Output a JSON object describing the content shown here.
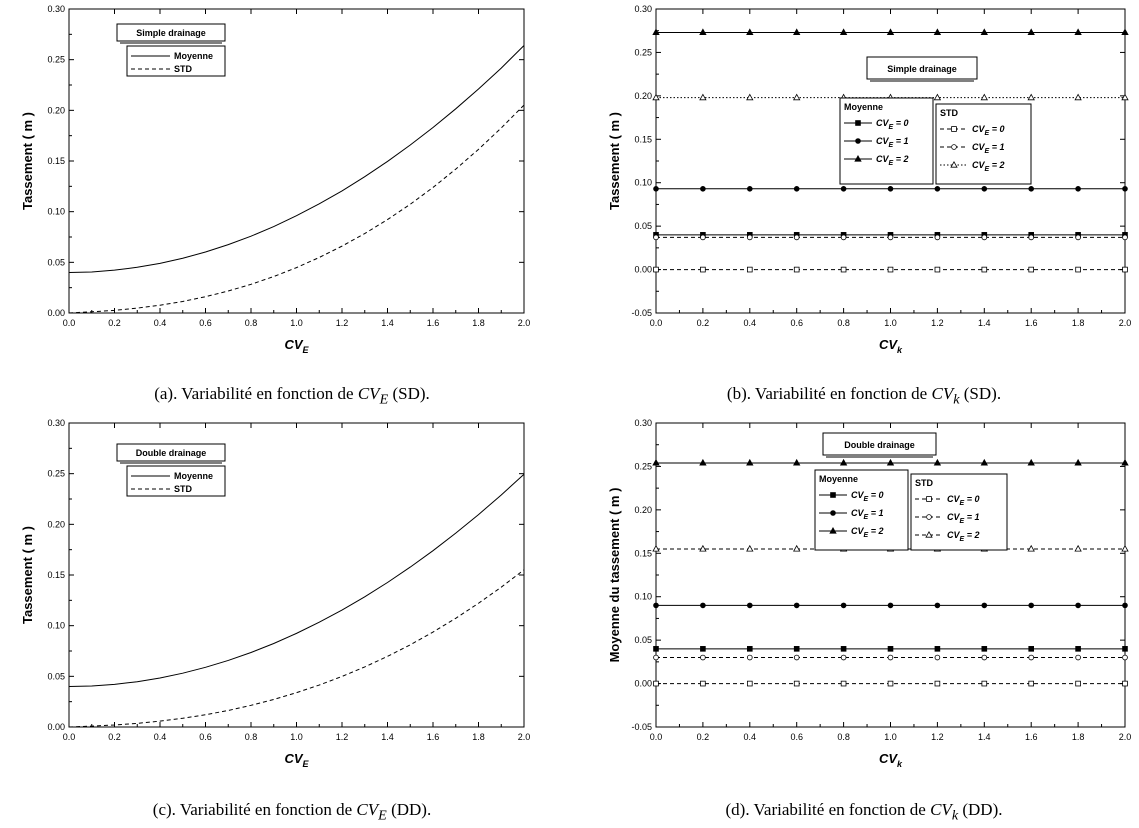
{
  "chart_data": [
    {
      "id": "a",
      "type": "line",
      "xlabel": "CV",
      "xlabel_sub": "E",
      "ylabel": "Tassement ( m )",
      "xlim": [
        0,
        2.0
      ],
      "ylim": [
        0,
        0.3
      ],
      "xticks": [
        "0.0",
        "0.2",
        "0.4",
        "0.6",
        "0.8",
        "1.0",
        "1.2",
        "1.4",
        "1.6",
        "1.8",
        "2.0"
      ],
      "yticks": [
        "0.00",
        "0.05",
        "0.10",
        "0.15",
        "0.20",
        "0.25",
        "0.30"
      ],
      "grid": false,
      "legend_title": "Simple drainage",
      "series": [
        {
          "name": "Moyenne",
          "style": "solid",
          "x": [
            0,
            0.1,
            0.2,
            0.3,
            0.4,
            0.5,
            0.6,
            0.7,
            0.8,
            0.9,
            1.0,
            1.1,
            1.2,
            1.3,
            1.4,
            1.5,
            1.6,
            1.7,
            1.8,
            1.9,
            2.0
          ],
          "y": [
            0.04,
            0.0405,
            0.0423,
            0.0451,
            0.049,
            0.054,
            0.0602,
            0.0675,
            0.0758,
            0.0853,
            0.096,
            0.1077,
            0.1205,
            0.1345,
            0.1496,
            0.1658,
            0.1831,
            0.2015,
            0.221,
            0.2417,
            0.264
          ]
        },
        {
          "name": "STD",
          "style": "dashed",
          "x": [
            0,
            0.1,
            0.2,
            0.3,
            0.4,
            0.5,
            0.6,
            0.7,
            0.8,
            0.9,
            1.0,
            1.1,
            1.2,
            1.3,
            1.4,
            1.5,
            1.6,
            1.7,
            1.8,
            1.9,
            2.0
          ],
          "y": [
            0,
            0.0012,
            0.0026,
            0.0048,
            0.0077,
            0.0114,
            0.0161,
            0.0217,
            0.0283,
            0.036,
            0.0448,
            0.0548,
            0.066,
            0.0784,
            0.0922,
            0.1073,
            0.1239,
            0.142,
            0.1615,
            0.1826,
            0.2052
          ]
        }
      ]
    },
    {
      "id": "b",
      "type": "line",
      "xlabel": "CV",
      "xlabel_sub": "k",
      "ylabel": "Tassement ( m )",
      "xlim": [
        0,
        2.0
      ],
      "ylim": [
        -0.05,
        0.3
      ],
      "xticks": [
        "0.0",
        "0.2",
        "0.4",
        "0.6",
        "0.8",
        "1.0",
        "1.2",
        "1.4",
        "1.6",
        "1.8",
        "2.0"
      ],
      "yticks": [
        "-0.05",
        "0.00",
        "0.05",
        "0.10",
        "0.15",
        "0.20",
        "0.25",
        "0.30"
      ],
      "grid": false,
      "legend_title": "Simple drainage",
      "legend_groups": [
        "Moyenne",
        "STD"
      ],
      "series": [
        {
          "group": "Moyenne",
          "name": "CVE = 0",
          "style": "solid",
          "marker": "square-filled",
          "y_const": 0.04
        },
        {
          "group": "Moyenne",
          "name": "CVE = 1",
          "style": "solid",
          "marker": "circle-filled",
          "y_const": 0.093
        },
        {
          "group": "Moyenne",
          "name": "CVE = 2",
          "style": "solid",
          "marker": "triangle-filled",
          "y_const": 0.273
        },
        {
          "group": "STD",
          "name": "CVE = 0",
          "style": "dashed",
          "marker": "square-open",
          "y_const": 0.0
        },
        {
          "group": "STD",
          "name": "CVE = 1",
          "style": "dashed",
          "marker": "circle-open",
          "y_const": 0.037
        },
        {
          "group": "STD",
          "name": "CVE = 2",
          "style": "dotted",
          "marker": "triangle-open",
          "y_const": 0.198
        }
      ]
    },
    {
      "id": "c",
      "type": "line",
      "xlabel": "CV",
      "xlabel_sub": "E",
      "ylabel": "Tassement ( m )",
      "xlim": [
        0,
        2.0
      ],
      "ylim": [
        0,
        0.3
      ],
      "xticks": [
        "0.0",
        "0.2",
        "0.4",
        "0.6",
        "0.8",
        "1.0",
        "1.2",
        "1.4",
        "1.6",
        "1.8",
        "2.0"
      ],
      "yticks": [
        "0.00",
        "0.05",
        "0.10",
        "0.15",
        "0.20",
        "0.25",
        "0.30"
      ],
      "grid": false,
      "legend_title": "Double drainage",
      "series": [
        {
          "name": "Moyenne",
          "style": "solid",
          "x": [
            0,
            0.1,
            0.2,
            0.3,
            0.4,
            0.5,
            0.6,
            0.7,
            0.8,
            0.9,
            1.0,
            1.1,
            1.2,
            1.3,
            1.4,
            1.5,
            1.6,
            1.7,
            1.8,
            1.9,
            2.0
          ],
          "y": [
            0.04,
            0.0405,
            0.0421,
            0.0447,
            0.0484,
            0.0531,
            0.0589,
            0.0657,
            0.0735,
            0.0824,
            0.0924,
            0.1034,
            0.1154,
            0.1285,
            0.1426,
            0.1578,
            0.174,
            0.1913,
            0.2096,
            0.229,
            0.2494
          ]
        },
        {
          "name": "STD",
          "style": "dashed",
          "x": [
            0,
            0.1,
            0.2,
            0.3,
            0.4,
            0.5,
            0.6,
            0.7,
            0.8,
            0.9,
            1.0,
            1.1,
            1.2,
            1.3,
            1.4,
            1.5,
            1.6,
            1.7,
            1.8,
            1.9,
            2.0
          ],
          "y": [
            0,
            0.0009,
            0.002,
            0.0036,
            0.0058,
            0.0086,
            0.0121,
            0.0163,
            0.0214,
            0.0272,
            0.0339,
            0.0414,
            0.0499,
            0.0593,
            0.0697,
            0.0811,
            0.0937,
            0.1073,
            0.1221,
            0.138,
            0.1551
          ]
        }
      ]
    },
    {
      "id": "d",
      "type": "line",
      "xlabel": "CV",
      "xlabel_sub": "k",
      "ylabel": "Moyenne du tassement ( m )",
      "xlim": [
        0,
        2.0
      ],
      "ylim": [
        -0.05,
        0.3
      ],
      "xticks": [
        "0.0",
        "0.2",
        "0.4",
        "0.6",
        "0.8",
        "1.0",
        "1.2",
        "1.4",
        "1.6",
        "1.8",
        "2.0"
      ],
      "yticks": [
        "-0.05",
        "0.00",
        "0.05",
        "0.10",
        "0.15",
        "0.20",
        "0.25",
        "0.30"
      ],
      "grid": false,
      "legend_title": "Double drainage",
      "legend_groups": [
        "Moyenne",
        "STD"
      ],
      "series": [
        {
          "group": "Moyenne",
          "name": "CVE = 0",
          "style": "solid",
          "marker": "square-filled",
          "y_const": 0.04
        },
        {
          "group": "Moyenne",
          "name": "CVE = 1",
          "style": "solid",
          "marker": "circle-filled",
          "y_const": 0.09
        },
        {
          "group": "Moyenne",
          "name": "CVE = 2",
          "style": "solid",
          "marker": "triangle-filled",
          "y_const": 0.254
        },
        {
          "group": "STD",
          "name": "CVE = 0",
          "style": "dashed",
          "marker": "square-open",
          "y_const": 0.0
        },
        {
          "group": "STD",
          "name": "CVE = 1",
          "style": "dashed",
          "marker": "circle-open",
          "y_const": 0.03
        },
        {
          "group": "STD",
          "name": "CVE = 2",
          "style": "dashed",
          "marker": "triangle-open",
          "y_const": 0.155
        }
      ]
    }
  ],
  "captions": {
    "a": {
      "prefix": "(a). Variabilité en fonction de ",
      "var": "CV",
      "sub": "E",
      "suffix": " (SD)."
    },
    "b": {
      "prefix": "(b). Variabilité en fonction de ",
      "var": "CV",
      "sub": "k",
      "suffix": " (SD)."
    },
    "c": {
      "prefix": "(c). Variabilité en fonction de ",
      "var": "CV",
      "sub": "E",
      "suffix": " (DD)."
    },
    "d": {
      "prefix": "(d). Variabilité en fonction de ",
      "var": "CV",
      "sub": "k",
      "suffix": " (DD)."
    }
  }
}
